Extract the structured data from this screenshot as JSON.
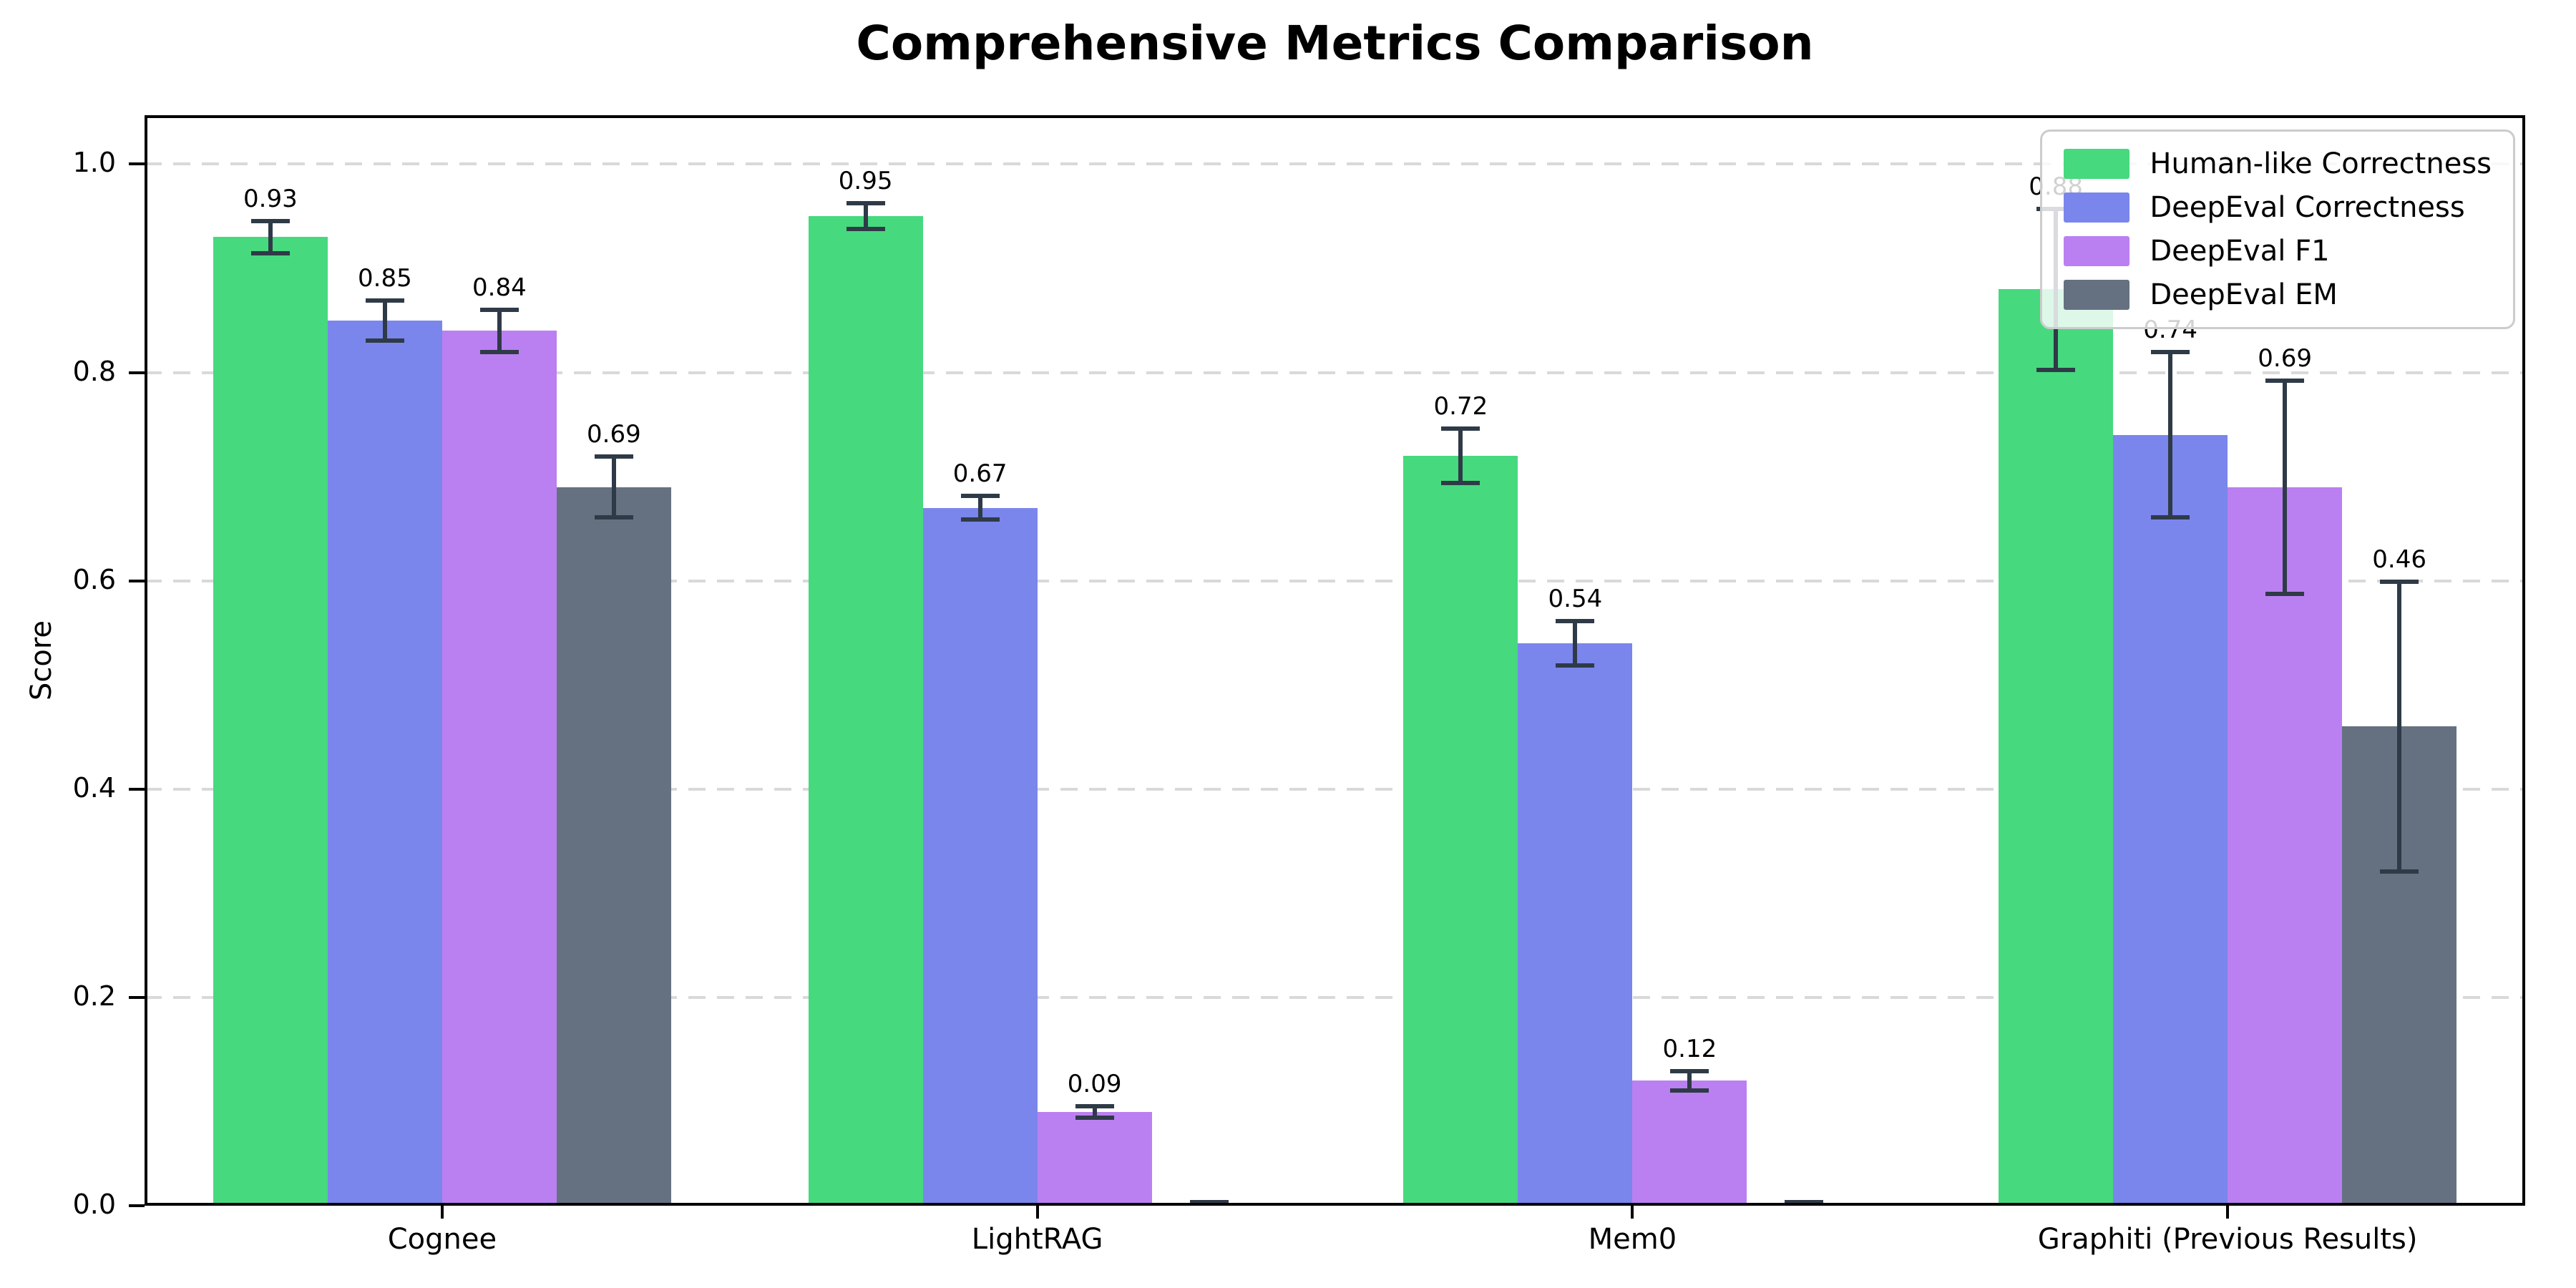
{
  "title": "Comprehensive Metrics Comparison",
  "ylabel": "Score",
  "chart_data": {
    "type": "bar",
    "title": "Comprehensive Metrics Comparison",
    "xlabel": "",
    "ylabel": "Score",
    "categories": [
      "Cognee",
      "LightRAG",
      "Mem0",
      "Graphiti (Previous Results)"
    ],
    "y_ticks": [
      "0.0",
      "0.2",
      "0.4",
      "0.6",
      "0.8",
      "1.0"
    ],
    "ylim": [
      0,
      1.047
    ],
    "grid": "horizontal-dashed",
    "legend_position": "upper-right",
    "series": [
      {
        "name": "Human-like Correctness",
        "color": "#46d97e",
        "values": [
          0.93,
          0.95,
          0.72,
          0.88
        ],
        "errors": [
          0.016,
          0.013,
          0.027,
          0.078
        ],
        "labels": [
          "0.93",
          "0.95",
          "0.72",
          "0.88"
        ]
      },
      {
        "name": "DeepEval Correctness",
        "color": "#7a86ec",
        "values": [
          0.85,
          0.67,
          0.54,
          0.74
        ],
        "errors": [
          0.02,
          0.012,
          0.022,
          0.08
        ],
        "labels": [
          "0.85",
          "0.67",
          "0.54",
          "0.74"
        ]
      },
      {
        "name": "DeepEval F1",
        "color": "#ba80f1",
        "values": [
          0.84,
          0.09,
          0.12,
          0.69
        ],
        "errors": [
          0.021,
          0.006,
          0.01,
          0.103
        ],
        "labels": [
          "0.84",
          "0.09",
          "0.12",
          "0.69"
        ]
      },
      {
        "name": "DeepEval EM",
        "color": "#657180",
        "values": [
          0.69,
          0.0,
          0.0,
          0.46
        ],
        "errors": [
          0.03,
          0.004,
          0.004,
          0.14
        ],
        "labels": [
          "0.69",
          null,
          null,
          "0.46"
        ]
      }
    ],
    "error_bar_color": "#2f3a47",
    "grid_color": "#d9d9d9",
    "axis_color": "#000000"
  }
}
